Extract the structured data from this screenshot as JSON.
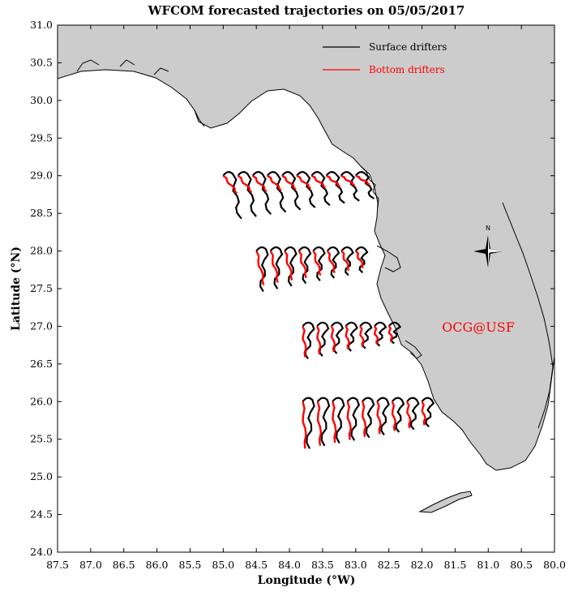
{
  "title": "WFCOM forecasted trajectories on 05/05/2017",
  "xlabel": "Longitude (°W)",
  "ylabel": "Latitude (°N)",
  "xlim": [
    87.5,
    80.0
  ],
  "ylim": [
    24.0,
    31.0
  ],
  "x_ticks": [
    "87.5",
    "87.0",
    "86.5",
    "86.0",
    "85.5",
    "85.0",
    "84.5",
    "84.0",
    "83.5",
    "83.0",
    "82.5",
    "82.0",
    "81.5",
    "81.0",
    "80.5",
    "80.0"
  ],
  "y_ticks": [
    "24.0",
    "24.5",
    "25.0",
    "25.5",
    "26.0",
    "26.5",
    "27.0",
    "27.5",
    "28.0",
    "28.5",
    "29.0",
    "29.5",
    "30.0",
    "30.5",
    "31.0"
  ],
  "legend": {
    "placement": "top-right",
    "items": [
      {
        "label": "Surface drifters",
        "color": "#000000"
      },
      {
        "label": "Bottom drifters",
        "color": "#ff0000"
      }
    ]
  },
  "watermark": "OCG@USF",
  "compass_label": "N",
  "colors": {
    "land": "#cccccc",
    "surface": "#000000",
    "bottom": "#ff0000",
    "water": "#ffffff"
  },
  "chart_data": {
    "type": "map-trajectories",
    "release_rows": [
      {
        "lat": 29.0,
        "lon_start": 85.0,
        "lon_end": 83.0,
        "count": 10
      },
      {
        "lat": 28.0,
        "lon_start": 84.5,
        "lon_end": 83.0,
        "count": 8
      },
      {
        "lat": 27.0,
        "lon_start": 83.8,
        "lon_end": 82.5,
        "count": 7
      },
      {
        "lat": 26.0,
        "lon_start": 83.8,
        "lon_end": 82.0,
        "count": 9
      }
    ],
    "series": [
      {
        "name": "Surface drifters",
        "color": "#000000"
      },
      {
        "name": "Bottom drifters",
        "color": "#ff0000"
      }
    ]
  }
}
